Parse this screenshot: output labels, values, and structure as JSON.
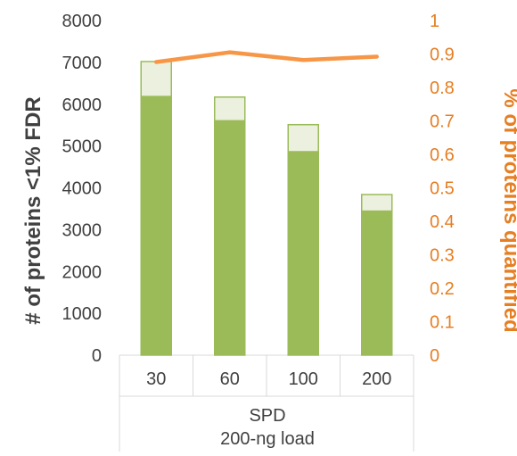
{
  "chart_data": {
    "type": "bar",
    "categories": [
      "30",
      "60",
      "100",
      "200"
    ],
    "series": [
      {
        "values": [
          6200,
          5620,
          4880,
          3460
        ],
        "color": "#9bbb59"
      },
      {
        "values": [
          7020,
          6170,
          5510,
          3840
        ],
        "color": "#ebf1de"
      },
      {
        "values": [
          0.876,
          0.905,
          0.882,
          0.892
        ],
        "color": "#f79646",
        "type": "line",
        "axis": "right"
      }
    ],
    "xlabel": [
      "SPD",
      "200-ng load"
    ],
    "ylabel": "# of proteins <1% FDR",
    "ylabel_right": "% of proteins quantified",
    "ylim": [
      0,
      8000
    ],
    "ylim_right": [
      0,
      1
    ],
    "yticks": [
      "0",
      "1000",
      "2000",
      "3000",
      "4000",
      "5000",
      "6000",
      "7000",
      "8000"
    ],
    "yticks_right": [
      "0",
      "0.1",
      "0.2",
      "0.3",
      "0.4",
      "0.5",
      "0.6",
      "0.7",
      "0.8",
      "0.9",
      "1"
    ],
    "grid": false,
    "legend": "none"
  }
}
